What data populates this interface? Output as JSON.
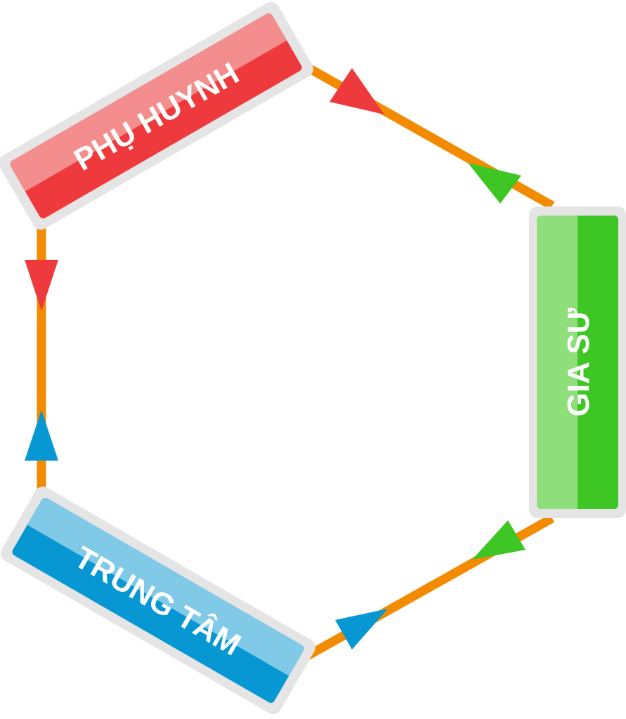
{
  "nodes": {
    "parent": {
      "label": "PHỤ HUYNH",
      "color_light": "#F38D8E",
      "color_dark": "#EE3A3C"
    },
    "tutor": {
      "label": "GIA SƯ",
      "color_light": "#8EDE7C",
      "color_dark": "#3EC624"
    },
    "center": {
      "label": "TRUNG TÂM",
      "color_light": "#80C9E7",
      "color_dark": "#0797D2"
    }
  },
  "connector_color": "#F28B00",
  "arrows": [
    {
      "on": "parent-to-tutor",
      "color": "#EE3A3C",
      "direction": "toward tutor"
    },
    {
      "on": "parent-to-tutor",
      "color": "#3EC624",
      "direction": "toward parent"
    },
    {
      "on": "tutor-to-center",
      "color": "#3EC624",
      "direction": "toward tutor"
    },
    {
      "on": "tutor-to-center",
      "color": "#0797D2",
      "direction": "toward tutor"
    },
    {
      "on": "center-to-parent",
      "color": "#0797D2",
      "direction": "toward parent"
    },
    {
      "on": "center-to-parent",
      "color": "#EE3A3C",
      "direction": "toward center"
    }
  ]
}
